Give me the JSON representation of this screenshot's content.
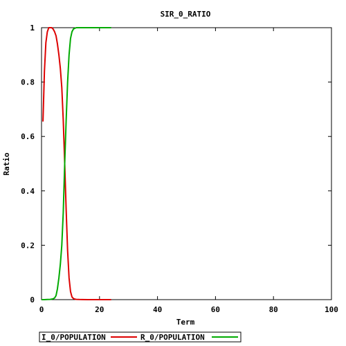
{
  "chart_data": {
    "type": "line",
    "title": "SIR_0_RATIO",
    "xlabel": "Term",
    "ylabel": "Ratio",
    "xlim": [
      0,
      100
    ],
    "ylim": [
      0,
      1
    ],
    "xticks": [
      0,
      20,
      40,
      60,
      80,
      100
    ],
    "yticks": [
      0,
      0.2,
      0.4,
      0.6,
      0.8,
      1
    ],
    "ytick_labels": [
      "0",
      "0.2",
      "0.4",
      "0.6",
      "0.8",
      "1"
    ],
    "grid": false,
    "legend_position": "bottom-left",
    "series": [
      {
        "name": "I_0/POPULATION",
        "color": "#dd0000",
        "x": [
          0.5,
          1,
          1.5,
          2,
          2.5,
          3,
          3.5,
          4,
          4.5,
          5,
          5.5,
          6,
          6.5,
          7,
          7.5,
          8,
          8.5,
          9,
          9.5,
          10,
          10.5,
          11,
          11.5,
          12,
          13,
          14,
          16,
          18,
          20,
          22,
          24
        ],
        "y": [
          0.655,
          0.84,
          0.945,
          0.985,
          1.0,
          1.0,
          1.0,
          0.995,
          0.985,
          0.97,
          0.94,
          0.9,
          0.85,
          0.78,
          0.66,
          0.5,
          0.33,
          0.18,
          0.08,
          0.03,
          0.01,
          0.004,
          0.002,
          0.001,
          0.0005,
          0.0002,
          0.0001,
          5e-05,
          0,
          0,
          0
        ]
      },
      {
        "name": "R_0/POPULATION",
        "color": "#00aa00",
        "x": [
          0,
          1,
          2,
          3,
          4,
          4.5,
          5,
          5.5,
          6,
          6.5,
          7,
          7.5,
          8,
          8.5,
          9,
          9.5,
          10,
          10.5,
          11,
          11.5,
          12,
          13,
          14,
          16,
          18,
          20,
          22,
          24
        ],
        "y": [
          0,
          0,
          0.0005,
          0.001,
          0.003,
          0.006,
          0.015,
          0.04,
          0.08,
          0.13,
          0.2,
          0.32,
          0.5,
          0.66,
          0.8,
          0.9,
          0.96,
          0.985,
          0.995,
          0.998,
          1.0,
          1.0,
          1.0,
          1.0,
          1.0,
          1.0,
          1.0,
          1.0
        ]
      }
    ]
  }
}
